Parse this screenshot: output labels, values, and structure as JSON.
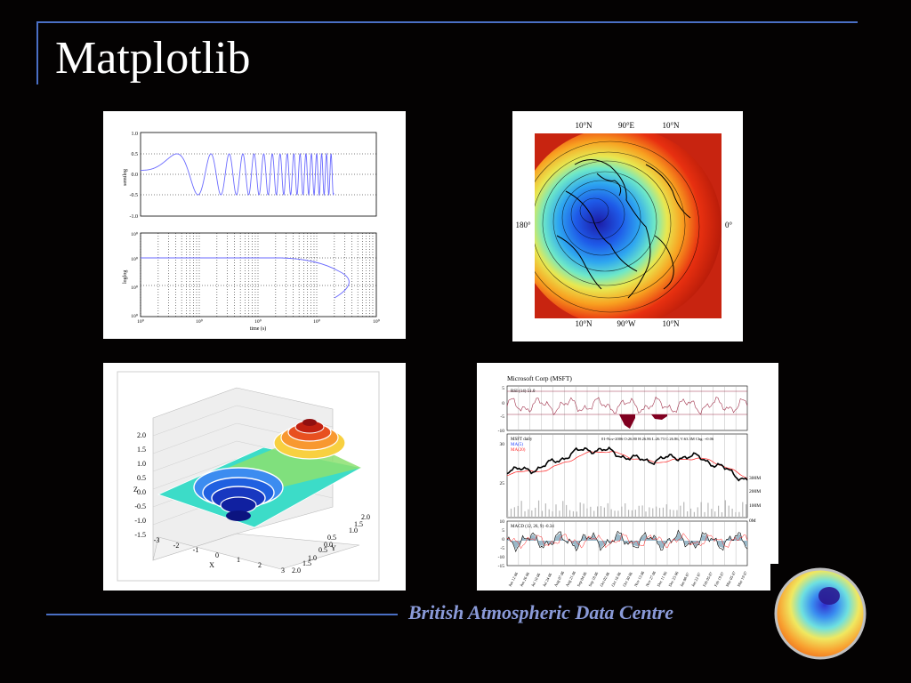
{
  "slide": {
    "title": "Matplotlib",
    "footer": "British Atmospheric Data Centre",
    "accent_color": "#4a6fc4",
    "footer_color": "#8a9ad8",
    "background_color": "#040202"
  },
  "plot_semilog": {
    "ylabel": "semilog",
    "yticks": [
      "1.0",
      "0.5",
      "0.0",
      "-0.5",
      "-1.0"
    ]
  },
  "plot_loglog": {
    "ylabel": "loglog",
    "yticks": [
      "10⁰",
      "10⁰",
      "10⁰",
      "10⁰"
    ],
    "xticks": [
      "10⁰",
      "10⁰",
      "10⁰",
      "10⁰",
      "10⁰"
    ],
    "xlabel": "time (s)"
  },
  "polar_map": {
    "top_labels": [
      "10°N",
      "90°E",
      "10°N"
    ],
    "bottom_labels": [
      "10°N",
      "90°W",
      "10°N"
    ],
    "left_label": "180°",
    "right_label": "0°"
  },
  "surface3d": {
    "z_ticks": [
      "2.0",
      "1.5",
      "1.0",
      "0.5",
      "0.0",
      "-0.5",
      "-1.0",
      "-1.5"
    ],
    "z_label": "Z",
    "x_ticks": [
      "-3",
      "-2",
      "-1",
      "0",
      "1",
      "2",
      "3"
    ],
    "x_label": "X",
    "y_ticks": [
      "2.0",
      "1.5",
      "1.0",
      "0.5",
      "0.0",
      "0.5",
      "1.0",
      "1.5",
      "2.0"
    ],
    "y_label": "Y"
  },
  "finance": {
    "title": "Microsoft Corp (MSFT)",
    "rsi_label": "RSI (14) 51.0",
    "rsi_ticks": [
      "5",
      "0",
      "-5",
      "-10"
    ],
    "price_label": "MSFT daily",
    "ma_label_1": "MA(5)",
    "ma_label_2": "MA(20)",
    "price_info": "01-Nov-2006 O:26.80 H:26.86 L:26.73 C:26.86, V:63.3M Chg: +0.06",
    "price_ticks": [
      "30",
      "25"
    ],
    "volume_ticks": [
      "300M",
      "200M",
      "100M",
      "0M"
    ],
    "macd_label": "MACD (12, 26, 9) -0.34",
    "macd_ticks": [
      "10",
      "5",
      "0",
      "-5",
      "-10",
      "-15"
    ],
    "dates": [
      "Jun 12 06",
      "Jun 26 06",
      "Jul 10 06",
      "Jul 24 06",
      "Aug 07 06",
      "Aug 21 06",
      "Sep 04 06",
      "Sep 18 06",
      "Oct 02 06",
      "Oct 16 06",
      "Oct 30 06",
      "Nov 13 06",
      "Nov 27 06",
      "Dec 11 06",
      "Dec 25 06",
      "Jan 08 07",
      "Jan 22 07",
      "Feb 05 07",
      "Feb 19 07",
      "Mar 05 07",
      "Mar 19 07"
    ],
    "colors": {
      "price": "#000000",
      "ma_fast": "#1a3aff",
      "ma_slow": "#ff2020",
      "rsi": "#a0304a",
      "macd_fill": "#9ab8c8"
    }
  }
}
